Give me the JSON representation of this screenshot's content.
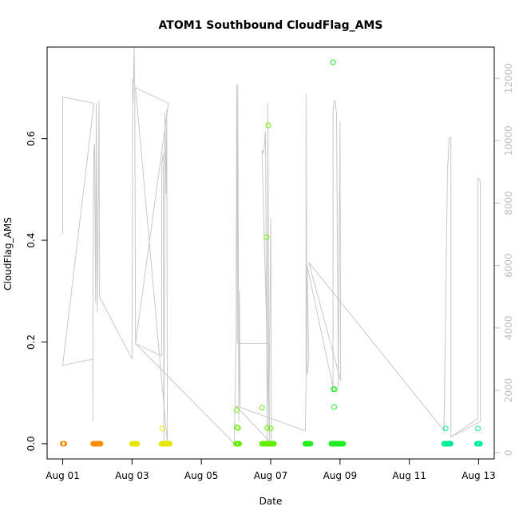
{
  "chart_data": {
    "type": "scatter",
    "title": "ATOM1 Southbound CloudFlag_AMS",
    "xlabel": "Date",
    "ylabel": "CloudFlag_AMS",
    "ylim": [
      -0.03,
      0.78
    ],
    "y2lim": [
      -200,
      13000
    ],
    "x_tick_labels": [
      "Aug 01",
      "Aug 03",
      "Aug 05",
      "Aug 07",
      "Aug 09",
      "Aug 11",
      "Aug 13"
    ],
    "x_tick_values": [
      1,
      3,
      5,
      7,
      9,
      11,
      13
    ],
    "y_tick_labels": [
      "0.0",
      "0.2",
      "0.4",
      "0.6"
    ],
    "y_tick_values": [
      0,
      0.2,
      0.4,
      0.6
    ],
    "y2_tick_labels": [
      "0",
      "2000",
      "4000",
      "6000",
      "8000",
      "10000",
      "12000"
    ],
    "y2_tick_values": [
      0,
      2000,
      4000,
      6000,
      8000,
      10000,
      12000
    ],
    "grid": false,
    "colors": {
      "axis": "#000000",
      "secondary_axis": "#bebebe",
      "secondary_line": "#c8c8c8"
    },
    "series": [
      {
        "color": "#ff8c00",
        "zero_segments": [
          [
            1.0,
            1.05
          ],
          [
            1.88,
            2.1
          ]
        ],
        "points": []
      },
      {
        "color": "#e6e600",
        "zero_segments": [
          [
            3.0,
            3.15
          ],
          [
            3.85,
            4.1
          ]
        ],
        "points": [
          [
            3.87,
            0.03
          ]
        ]
      },
      {
        "color": "#66ee00",
        "zero_segments": [
          [
            6.0,
            6.1
          ],
          [
            6.75,
            7.1
          ]
        ],
        "points": [
          [
            6.02,
            0.066
          ],
          [
            6.03,
            0.032
          ],
          [
            6.06,
            0.031
          ],
          [
            6.75,
            0.071
          ],
          [
            6.88,
            0.406
          ],
          [
            6.93,
            0.626
          ],
          [
            6.9,
            0.031
          ],
          [
            7.0,
            0.03
          ]
        ]
      },
      {
        "color": "#22ee22",
        "zero_segments": [
          [
            8.0,
            8.15
          ],
          [
            8.75,
            9.1
          ]
        ],
        "points": [
          [
            8.8,
            0.75
          ],
          [
            8.81,
            0.107
          ],
          [
            8.85,
            0.107
          ],
          [
            8.83,
            0.072
          ]
        ]
      },
      {
        "color": "#00ee99",
        "zero_segments": [
          [
            12.0,
            12.2
          ],
          [
            12.95,
            13.05
          ]
        ],
        "points": [
          [
            12.05,
            0.03
          ],
          [
            12.98,
            0.03
          ]
        ]
      }
    ],
    "secondary_line": [
      [
        1.0,
        7000
      ],
      [
        1.0,
        11400
      ],
      [
        1.9,
        11200
      ],
      [
        1.0,
        2800
      ],
      [
        1.87,
        3000
      ],
      [
        1.87,
        1000
      ],
      [
        1.88,
        5600
      ],
      [
        1.9,
        9700
      ],
      [
        1.92,
        9900
      ],
      [
        1.95,
        4800
      ],
      [
        1.97,
        11200
      ],
      [
        2.0,
        4500
      ],
      [
        2.05,
        11300
      ],
      [
        2.06,
        5000
      ],
      [
        3.0,
        3000
      ],
      [
        3.02,
        12000
      ],
      [
        3.03,
        11200
      ],
      [
        3.06,
        13000
      ],
      [
        3.08,
        11600
      ],
      [
        3.1,
        3500
      ],
      [
        3.85,
        3100
      ],
      [
        3.86,
        9300
      ],
      [
        3.9,
        9600
      ],
      [
        3.92,
        300
      ],
      [
        3.95,
        10900
      ],
      [
        3.98,
        8300
      ],
      [
        4.0,
        11000
      ],
      [
        4.02,
        300
      ],
      [
        3.1,
        11700
      ],
      [
        4.05,
        11200
      ],
      [
        3.1,
        3500
      ],
      [
        5.95,
        300
      ],
      [
        6.0,
        3500
      ],
      [
        6.02,
        11800
      ],
      [
        6.04,
        3500
      ],
      [
        6.05,
        11800
      ],
      [
        6.08,
        1000
      ],
      [
        6.1,
        5200
      ],
      [
        6.12,
        1500
      ],
      [
        6.1,
        3500
      ],
      [
        6.95,
        3500
      ],
      [
        6.97,
        300
      ],
      [
        6.75,
        9700
      ],
      [
        6.8,
        9600
      ],
      [
        6.85,
        10300
      ],
      [
        6.9,
        300
      ],
      [
        6.92,
        11200
      ],
      [
        6.95,
        800
      ],
      [
        7.0,
        7500
      ],
      [
        7.02,
        300
      ],
      [
        6.0,
        1500
      ],
      [
        8.0,
        700
      ],
      [
        8.02,
        2100
      ],
      [
        8.02,
        11500
      ],
      [
        8.05,
        2500
      ],
      [
        8.1,
        3000
      ],
      [
        8.05,
        6000
      ],
      [
        8.8,
        2100
      ],
      [
        8.8,
        11000
      ],
      [
        8.85,
        11300
      ],
      [
        8.9,
        10900
      ],
      [
        8.95,
        2100
      ],
      [
        9.0,
        10600
      ],
      [
        9.02,
        2300
      ],
      [
        8.1,
        6100
      ],
      [
        12.0,
        700
      ],
      [
        12.1,
        9000
      ],
      [
        12.15,
        10100
      ],
      [
        12.2,
        10100
      ],
      [
        12.2,
        500
      ],
      [
        12.98,
        1100
      ],
      [
        12.98,
        8800
      ],
      [
        13.05,
        8700
      ],
      [
        13.05,
        1000
      ],
      [
        12.2,
        500
      ]
    ]
  }
}
